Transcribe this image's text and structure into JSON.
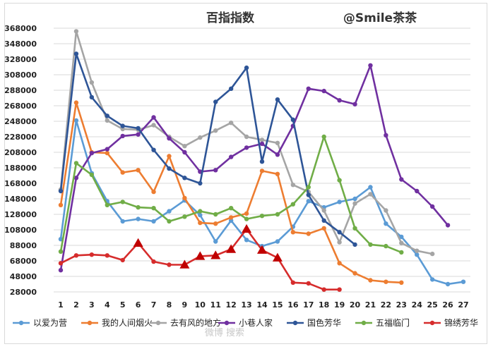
{
  "chart_data": {
    "type": "line",
    "title": "百指指数",
    "author": "@Smile茶茶",
    "watermark": "微博 搜索",
    "ylim": [
      28000,
      368000
    ],
    "y_ticks": [
      368000,
      348000,
      328000,
      308000,
      288000,
      268000,
      248000,
      228000,
      208000,
      188000,
      168000,
      148000,
      128000,
      108000,
      88000,
      68000,
      48000,
      28000
    ],
    "x": [
      1,
      2,
      3,
      4,
      5,
      6,
      7,
      8,
      9,
      10,
      11,
      12,
      13,
      14,
      15,
      16,
      17,
      18,
      19,
      20,
      21,
      22,
      23,
      24,
      25,
      26,
      27
    ],
    "grid": true,
    "legend_position": "bottom",
    "series": [
      {
        "name": "以爱为营",
        "color": "#5b9bd5",
        "marker": "circle",
        "x": [
          1,
          2,
          3,
          4,
          5,
          6,
          7,
          8,
          9,
          10,
          11,
          12,
          13,
          14,
          15,
          16,
          17,
          18,
          19,
          20,
          21,
          22,
          23,
          24,
          25,
          26,
          27
        ],
        "values": [
          96000,
          249000,
          181000,
          145000,
          119000,
          122000,
          119000,
          132000,
          146000,
          127000,
          93000,
          120000,
          95000,
          87000,
          93000,
          112000,
          145000,
          137000,
          144000,
          148000,
          163000,
          116000,
          99000,
          76000,
          44000,
          38000,
          41000
        ]
      },
      {
        "name": "我的人间烟火",
        "color": "#ed7d31",
        "marker": "circle",
        "x": [
          1,
          2,
          3,
          4,
          5,
          6,
          7,
          8,
          9,
          10,
          11,
          12,
          13,
          14,
          15,
          16,
          17,
          18,
          19,
          20,
          21,
          22,
          23
        ],
        "values": [
          140000,
          272000,
          208000,
          207000,
          182000,
          185000,
          157000,
          203000,
          149000,
          117000,
          116000,
          124000,
          129000,
          184000,
          180000,
          105000,
          103000,
          110000,
          65000,
          52000,
          43000,
          41000,
          40000
        ]
      },
      {
        "name": "去有风的地方",
        "color": "#a5a5a5",
        "marker": "circle",
        "x": [
          1,
          2,
          3,
          4,
          5,
          6,
          7,
          8,
          9,
          10,
          11,
          12,
          13,
          14,
          15,
          16,
          17,
          18,
          19,
          20,
          21,
          22,
          23,
          24,
          25
        ],
        "values": [
          160000,
          364000,
          298000,
          249000,
          238000,
          237000,
          243000,
          228000,
          216000,
          227000,
          236000,
          246000,
          228000,
          224000,
          220000,
          166000,
          157000,
          133000,
          92000,
          142000,
          154000,
          133000,
          91000,
          81000,
          77000
        ]
      },
      {
        "name": "小巷人家",
        "color": "#7030a0",
        "marker": "circle",
        "x": [
          1,
          2,
          3,
          4,
          5,
          6,
          7,
          8,
          9,
          10,
          11,
          12,
          13,
          14,
          15,
          16,
          17,
          18,
          19,
          20,
          21,
          22,
          23,
          24,
          25,
          26
        ],
        "values": [
          56000,
          175000,
          207000,
          212000,
          229000,
          231000,
          253000,
          226000,
          208000,
          183000,
          185000,
          202000,
          214000,
          219000,
          205000,
          242000,
          290000,
          287000,
          275000,
          270000,
          320000,
          230000,
          173000,
          158000,
          138000,
          114000
        ]
      },
      {
        "name": "国色芳华",
        "color": "#2e5597",
        "marker": "circle",
        "x": [
          1,
          2,
          3,
          4,
          5,
          6,
          7,
          8,
          9,
          10,
          11,
          12,
          13,
          14,
          15,
          16,
          17,
          18,
          19,
          20
        ],
        "values": [
          158000,
          335000,
          279000,
          255000,
          242000,
          239000,
          211000,
          187000,
          175000,
          168000,
          273000,
          290000,
          317000,
          196000,
          276000,
          250000,
          153000,
          120000,
          105000,
          89000
        ]
      },
      {
        "name": "五福临门",
        "color": "#70ad47",
        "marker": "circle",
        "x": [
          1,
          2,
          3,
          4,
          5,
          6,
          7,
          8,
          9,
          10,
          11,
          12,
          13,
          14,
          15,
          16,
          17,
          18,
          19,
          20,
          21,
          22,
          23
        ],
        "values": [
          80000,
          194000,
          179000,
          140000,
          144000,
          137000,
          136000,
          119000,
          125000,
          132000,
          128000,
          136000,
          122000,
          126000,
          128000,
          141000,
          163000,
          228000,
          172000,
          110000,
          89000,
          87000,
          79000
        ]
      },
      {
        "name": "锦绣芳华",
        "color": "#d62c2c",
        "marker": "circle",
        "x": [
          1,
          2,
          3,
          4,
          5,
          6,
          7,
          8,
          9,
          10,
          11,
          12,
          13,
          14,
          15,
          16,
          17,
          18,
          19
        ],
        "values": [
          65000,
          75000,
          76000,
          75000,
          69000,
          91000,
          67000,
          63000,
          63000,
          74000,
          75000,
          83000,
          109000,
          82000,
          72000,
          40000,
          39000,
          31000,
          31000
        ],
        "triangle_points": [
          6,
          9,
          10,
          11,
          12,
          13,
          14,
          15
        ]
      }
    ]
  }
}
